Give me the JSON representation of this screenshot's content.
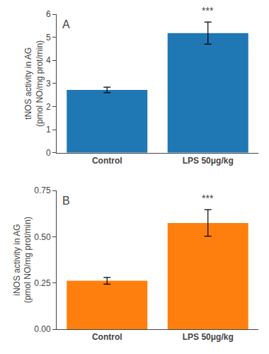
{
  "chart_data": [
    {
      "type": "bar",
      "title": "A",
      "categories": [
        "Control",
        "LPS 50μg/kg"
      ],
      "values": [
        2.72,
        5.18
      ],
      "errors": [
        0.12,
        0.48
      ],
      "ylabel": "tNOS activity in AG\n(pmol NO/mg prot/min)",
      "ylim": [
        0,
        6
      ],
      "yticks": [
        0,
        1,
        2,
        3,
        4,
        5,
        6
      ],
      "annotations": [
        {
          "text": "***",
          "x": "LPS 50μg/kg"
        }
      ],
      "grid": false
    },
    {
      "type": "bar",
      "title": "B",
      "categories": [
        "Control",
        "LPS 50μg/kg"
      ],
      "values": [
        0.262,
        0.575
      ],
      "errors": [
        0.018,
        0.072
      ],
      "ylabel": "iNOS activity in AG\n(pmol NO/mg prot/min)",
      "ylim": [
        0,
        0.75
      ],
      "yticks": [
        {
          "value": 0,
          "label": "0.00"
        },
        0.25,
        {
          "value": 0.5,
          "label": "0.50"
        },
        0.75
      ],
      "annotations": [
        {
          "text": "***",
          "x": "LPS 50μg/kg"
        }
      ],
      "grid": false
    }
  ]
}
